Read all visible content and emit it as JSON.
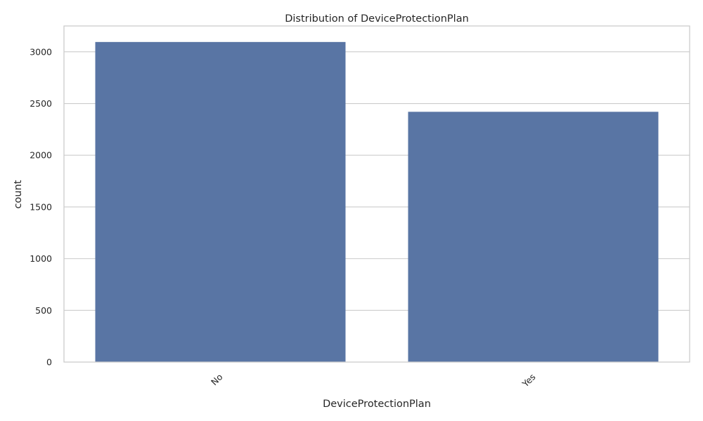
{
  "chart_data": {
    "type": "bar",
    "title": "Distribution of DeviceProtectionPlan",
    "xlabel": "DeviceProtectionPlan",
    "ylabel": "count",
    "categories": [
      "No",
      "Yes"
    ],
    "values": [
      3095,
      2420
    ],
    "ylim": [
      0,
      3250
    ],
    "yticks": [
      0,
      500,
      1000,
      1500,
      2000,
      2500,
      3000
    ],
    "ytick_labels": [
      "0",
      "500",
      "1000",
      "1500",
      "2000",
      "2500",
      "3000"
    ],
    "xtick_rotation_deg": 45,
    "grid": true,
    "bar_color": "#5975a4",
    "grid_color": "#cccccc",
    "text_color": "#262626",
    "background": "#ffffff"
  }
}
